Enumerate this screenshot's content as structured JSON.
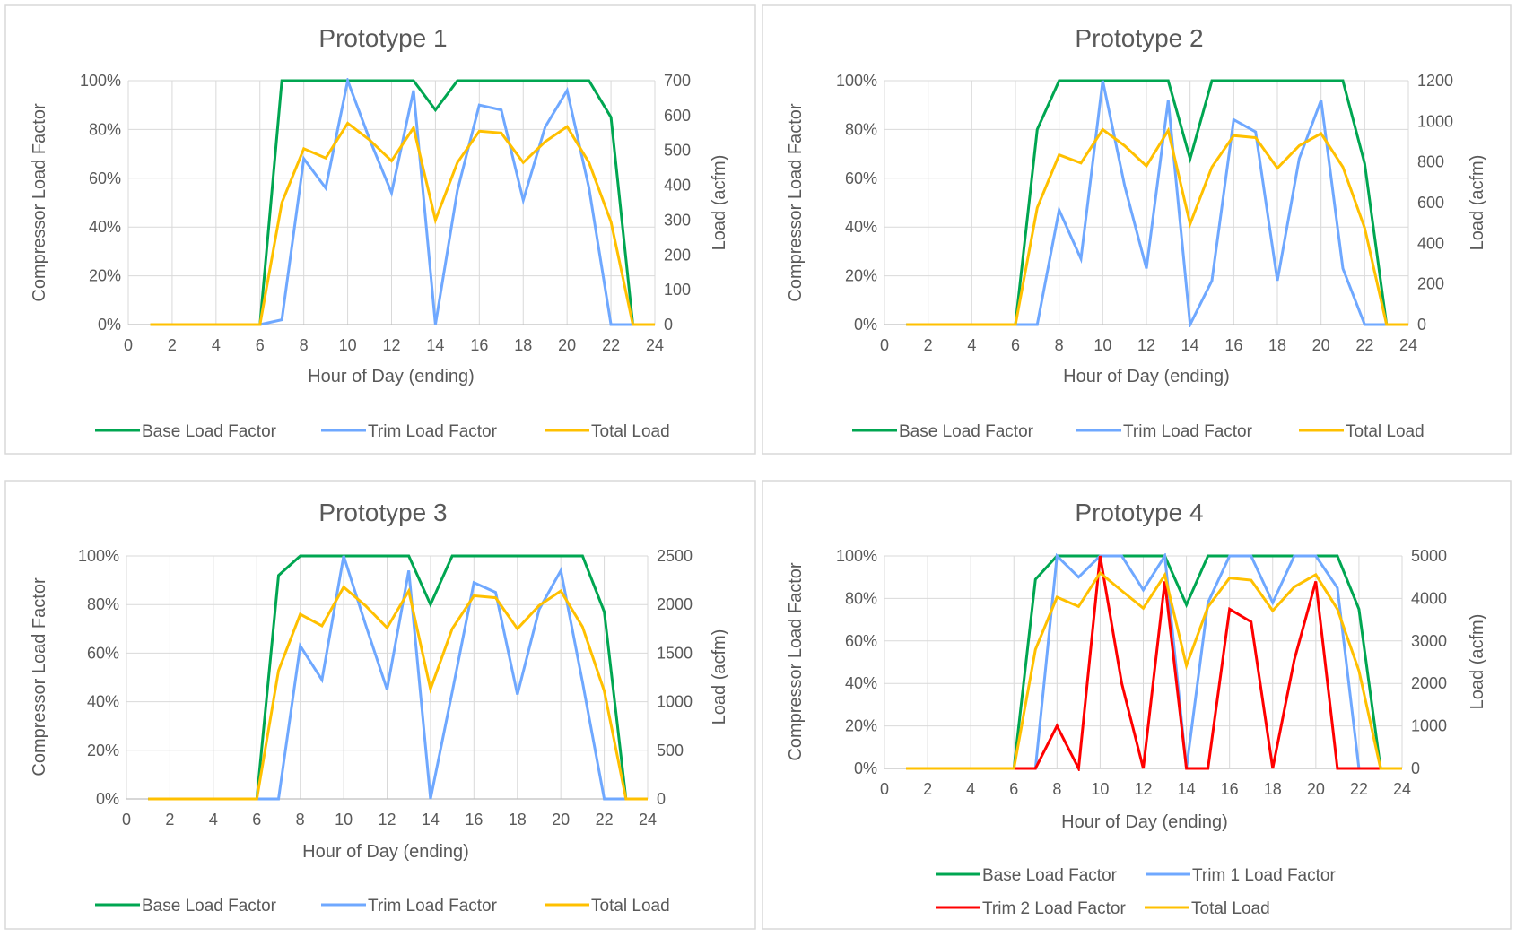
{
  "colors": {
    "base": "#00a651",
    "trim": "#6fa8ff",
    "trim2": "#ff0000",
    "total": "#ffc000",
    "grid": "#d9d9d9",
    "text": "#595959",
    "border": "#d9d9d9"
  },
  "chart_data": [
    {
      "type": "line",
      "title": "Prototype 1",
      "xlabel": "Hour of Day (ending)",
      "ylabel": "Compressor Load Factor",
      "y2label": "Load (acfm)",
      "xlim": [
        0,
        24
      ],
      "x_ticks": [
        "0",
        "2",
        "4",
        "6",
        "8",
        "10",
        "12",
        "14",
        "16",
        "18",
        "20",
        "22",
        "24"
      ],
      "ylim": [
        0,
        100
      ],
      "y_ticks": [
        "0%",
        "20%",
        "40%",
        "60%",
        "80%",
        "100%"
      ],
      "y2lim": [
        0,
        700
      ],
      "y2_ticks": [
        "0",
        "100",
        "200",
        "300",
        "400",
        "500",
        "600",
        "700"
      ],
      "legend_position": "bottom",
      "x": [
        1,
        2,
        3,
        4,
        5,
        6,
        7,
        8,
        9,
        10,
        11,
        12,
        13,
        14,
        15,
        16,
        17,
        18,
        19,
        20,
        21,
        22,
        23,
        24
      ],
      "series": [
        {
          "name": "Base Load Factor",
          "axis": "left",
          "color_key": "base",
          "values": [
            0,
            0,
            0,
            0,
            0,
            0,
            100,
            100,
            100,
            100,
            100,
            100,
            100,
            88,
            100,
            100,
            100,
            100,
            100,
            100,
            100,
            85,
            0,
            0
          ]
        },
        {
          "name": "Trim Load Factor",
          "axis": "left",
          "color_key": "trim",
          "values": [
            0,
            0,
            0,
            0,
            0,
            0,
            2,
            68,
            56,
            100,
            76,
            54,
            96,
            0,
            55,
            90,
            88,
            51,
            81,
            96,
            56,
            0,
            0,
            0
          ]
        },
        {
          "name": "Total Load",
          "axis": "right",
          "color_key": "total",
          "values": [
            0,
            0,
            0,
            0,
            0,
            0,
            350,
            505,
            478,
            578,
            530,
            470,
            565,
            300,
            465,
            555,
            550,
            465,
            525,
            568,
            465,
            295,
            0,
            0
          ]
        }
      ]
    },
    {
      "type": "line",
      "title": "Prototype 2",
      "xlabel": "Hour of Day (ending)",
      "ylabel": "Compressor Load Factor",
      "y2label": "Load (acfm)",
      "xlim": [
        0,
        24
      ],
      "x_ticks": [
        "0",
        "2",
        "4",
        "6",
        "8",
        "10",
        "12",
        "14",
        "16",
        "18",
        "20",
        "22",
        "24"
      ],
      "ylim": [
        0,
        100
      ],
      "y_ticks": [
        "0%",
        "20%",
        "40%",
        "60%",
        "80%",
        "100%"
      ],
      "y2lim": [
        0,
        1200
      ],
      "y2_ticks": [
        "0",
        "200",
        "400",
        "600",
        "800",
        "1000",
        "1200"
      ],
      "legend_position": "bottom",
      "x": [
        1,
        2,
        3,
        4,
        5,
        6,
        7,
        8,
        9,
        10,
        11,
        12,
        13,
        14,
        15,
        16,
        17,
        18,
        19,
        20,
        21,
        22,
        23,
        24
      ],
      "series": [
        {
          "name": "Base Load Factor",
          "axis": "left",
          "color_key": "base",
          "values": [
            0,
            0,
            0,
            0,
            0,
            0,
            80,
            100,
            100,
            100,
            100,
            100,
            100,
            68,
            100,
            100,
            100,
            100,
            100,
            100,
            100,
            66,
            0,
            0
          ]
        },
        {
          "name": "Trim Load Factor",
          "axis": "left",
          "color_key": "trim",
          "values": [
            0,
            0,
            0,
            0,
            0,
            0,
            0,
            47,
            27,
            100,
            57,
            23,
            92,
            0,
            18,
            84,
            79,
            18,
            68,
            92,
            23,
            0,
            0,
            0
          ]
        },
        {
          "name": "Total Load",
          "axis": "right",
          "color_key": "total",
          "values": [
            0,
            0,
            0,
            0,
            0,
            0,
            575,
            835,
            795,
            960,
            880,
            780,
            955,
            495,
            775,
            930,
            920,
            770,
            880,
            940,
            775,
            475,
            0,
            0
          ]
        }
      ]
    },
    {
      "type": "line",
      "title": "Prototype 3",
      "xlabel": "Hour of Day (ending)",
      "ylabel": "Compressor Load Factor",
      "y2label": "Load (acfm)",
      "xlim": [
        0,
        24
      ],
      "x_ticks": [
        "0",
        "2",
        "4",
        "6",
        "8",
        "10",
        "12",
        "14",
        "16",
        "18",
        "20",
        "22",
        "24"
      ],
      "ylim": [
        0,
        100
      ],
      "y_ticks": [
        "0%",
        "20%",
        "40%",
        "60%",
        "80%",
        "100%"
      ],
      "y2lim": [
        0,
        2500
      ],
      "y2_ticks": [
        "0",
        "500",
        "1000",
        "1500",
        "2000",
        "2500"
      ],
      "legend_position": "bottom",
      "x": [
        1,
        2,
        3,
        4,
        5,
        6,
        7,
        8,
        9,
        10,
        11,
        12,
        13,
        14,
        15,
        16,
        17,
        18,
        19,
        20,
        21,
        22,
        23,
        24
      ],
      "series": [
        {
          "name": "Base Load Factor",
          "axis": "left",
          "color_key": "base",
          "values": [
            0,
            0,
            0,
            0,
            0,
            0,
            92,
            100,
            100,
            100,
            100,
            100,
            100,
            80,
            100,
            100,
            100,
            100,
            100,
            100,
            100,
            77,
            0,
            0
          ]
        },
        {
          "name": "Trim Load Factor",
          "axis": "left",
          "color_key": "trim",
          "values": [
            0,
            0,
            0,
            0,
            0,
            0,
            0,
            63,
            49,
            100,
            72,
            45,
            94,
            0,
            44,
            89,
            85,
            43,
            78,
            94,
            48,
            0,
            0,
            0
          ]
        },
        {
          "name": "Total Load",
          "axis": "right",
          "color_key": "total",
          "values": [
            0,
            0,
            0,
            0,
            0,
            0,
            1320,
            1900,
            1780,
            2180,
            1990,
            1760,
            2140,
            1130,
            1750,
            2090,
            2070,
            1750,
            1990,
            2140,
            1770,
            1110,
            0,
            0
          ]
        }
      ]
    },
    {
      "type": "line",
      "title": "Prototype 4",
      "xlabel": "Hour of Day (ending)",
      "ylabel": "Compressor Load Factor",
      "y2label": "Load (acfm)",
      "xlim": [
        0,
        24
      ],
      "x_ticks": [
        "0",
        "2",
        "4",
        "6",
        "8",
        "10",
        "12",
        "14",
        "16",
        "18",
        "20",
        "22",
        "24"
      ],
      "ylim": [
        0,
        100
      ],
      "y_ticks": [
        "0%",
        "20%",
        "40%",
        "60%",
        "80%",
        "100%"
      ],
      "y2lim": [
        0,
        5000
      ],
      "y2_ticks": [
        "0",
        "1000",
        "2000",
        "3000",
        "4000",
        "5000"
      ],
      "legend_position": "bottom",
      "x": [
        1,
        2,
        3,
        4,
        5,
        6,
        7,
        8,
        9,
        10,
        11,
        12,
        13,
        14,
        15,
        16,
        17,
        18,
        19,
        20,
        21,
        22,
        23,
        24
      ],
      "series": [
        {
          "name": "Base Load Factor",
          "axis": "left",
          "color_key": "base",
          "values": [
            0,
            0,
            0,
            0,
            0,
            0,
            89,
            100,
            100,
            100,
            100,
            100,
            100,
            77,
            100,
            100,
            100,
            100,
            100,
            100,
            100,
            75,
            0,
            0
          ]
        },
        {
          "name": "Trim 1 Load Factor",
          "axis": "left",
          "color_key": "trim",
          "values": [
            0,
            0,
            0,
            0,
            0,
            0,
            0,
            100,
            90,
            100,
            100,
            84,
            100,
            0,
            78,
            100,
            100,
            78,
            100,
            100,
            85,
            0,
            0,
            0
          ]
        },
        {
          "name": "Trim 2 Load Factor",
          "axis": "left",
          "color_key": "trim2",
          "values": [
            0,
            0,
            0,
            0,
            0,
            0,
            0,
            20,
            0,
            100,
            40,
            0,
            88,
            0,
            0,
            75,
            69,
            0,
            51,
            88,
            0,
            0,
            0,
            0
          ]
        },
        {
          "name": "Total Load",
          "axis": "right",
          "color_key": "total",
          "values": [
            0,
            0,
            0,
            0,
            0,
            0,
            2800,
            4030,
            3810,
            4600,
            4180,
            3770,
            4550,
            2420,
            3800,
            4480,
            4430,
            3710,
            4270,
            4560,
            3750,
            2300,
            0,
            0
          ]
        }
      ]
    }
  ]
}
